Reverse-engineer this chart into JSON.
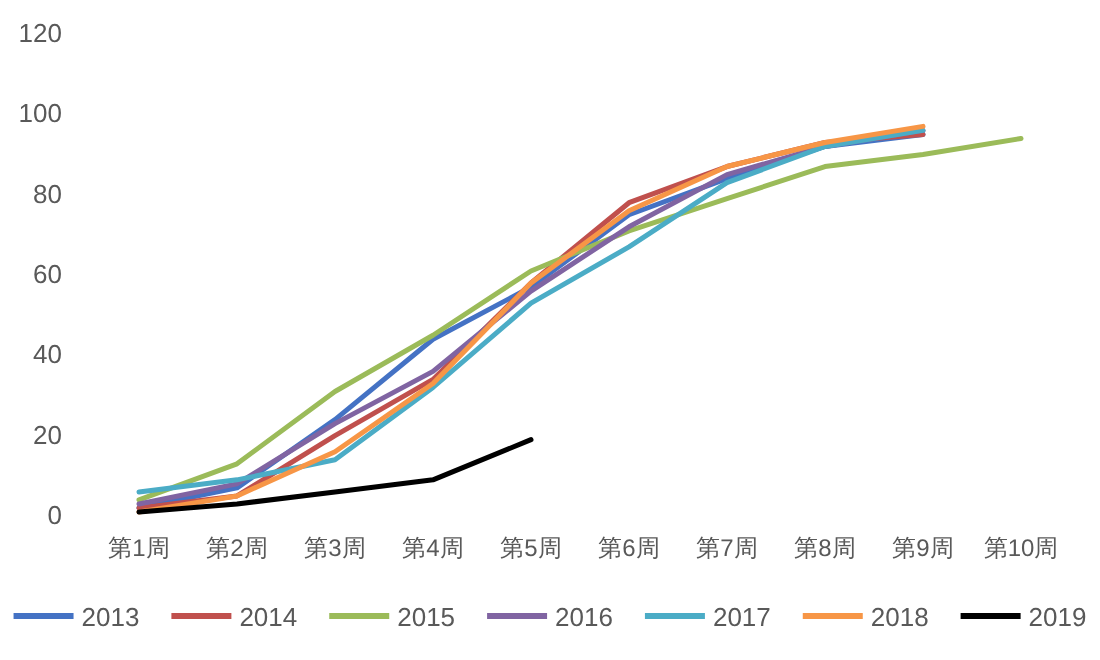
{
  "chart_data": {
    "type": "line",
    "categories": [
      "第1周",
      "第2周",
      "第3周",
      "第4周",
      "第5周",
      "第6周",
      "第7周",
      "第8周",
      "第9周",
      "第10周"
    ],
    "series": [
      {
        "name": "2013",
        "color": "#4472c4",
        "values": [
          2,
          7,
          24,
          44,
          57,
          75,
          84,
          92,
          95,
          null
        ]
      },
      {
        "name": "2014",
        "color": "#c0504d",
        "values": [
          2,
          5,
          20,
          34,
          58,
          78,
          87,
          93,
          95,
          null
        ]
      },
      {
        "name": "2015",
        "color": "#9bbb59",
        "values": [
          4,
          13,
          31,
          45,
          61,
          71,
          79,
          87,
          90,
          94
        ]
      },
      {
        "name": "2016",
        "color": "#8064a2",
        "values": [
          3,
          8,
          23,
          36,
          56,
          72,
          85,
          92,
          96,
          null
        ]
      },
      {
        "name": "2017",
        "color": "#4bacc6",
        "values": [
          6,
          9,
          14,
          32,
          53,
          67,
          83,
          92,
          96,
          null
        ]
      },
      {
        "name": "2018",
        "color": "#f79646",
        "values": [
          1,
          5,
          16,
          33,
          58,
          76,
          87,
          93,
          97,
          null
        ]
      },
      {
        "name": "2019",
        "color": "#000000",
        "values": [
          1,
          3,
          6,
          9,
          19,
          null,
          null,
          null,
          null,
          null
        ]
      }
    ],
    "ylim": [
      0,
      120
    ],
    "yticks": [
      0,
      20,
      40,
      60,
      80,
      100,
      120
    ],
    "grid": false,
    "legend": "bottom",
    "marker": "none",
    "line_style": "solid"
  }
}
